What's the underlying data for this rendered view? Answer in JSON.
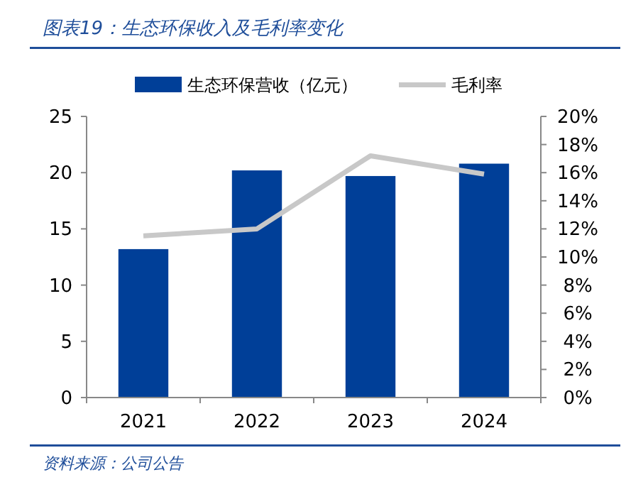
{
  "chart_data": {
    "type": "bar",
    "title": "图表19：生态环保收入及毛利率变化",
    "annotations": [
      "资料来源：公司公告"
    ],
    "categories": [
      "2021",
      "2022",
      "2023",
      "2024"
    ],
    "series": [
      {
        "name": "生态环保营收（亿元）",
        "color": "#003f98",
        "values": [
          13.2,
          20.2,
          19.7,
          20.8
        ]
      },
      {
        "name": "毛利率",
        "type": "line",
        "axis": "y2",
        "color": "#c8c8c8",
        "values": [
          11.5,
          12.0,
          17.2,
          15.9
        ]
      }
    ],
    "ylim": [
      0,
      25
    ],
    "yticks": [
      0,
      5,
      10,
      15,
      20,
      25
    ],
    "y2lim": [
      0,
      20
    ],
    "y2ticks": [
      {
        "value": 0,
        "label": "0%"
      },
      {
        "value": 2,
        "label": "2%"
      },
      {
        "value": 4,
        "label": "4%"
      },
      {
        "value": 6,
        "label": "6%"
      },
      {
        "value": 8,
        "label": "8%"
      },
      {
        "value": 10,
        "label": "10%"
      },
      {
        "value": 12,
        "label": "12%"
      },
      {
        "value": 14,
        "label": "14%"
      },
      {
        "value": 16,
        "label": "16%"
      },
      {
        "value": 18,
        "label": "18%"
      },
      {
        "value": 20,
        "label": "20%"
      }
    ],
    "grid": false,
    "legend": "top"
  }
}
